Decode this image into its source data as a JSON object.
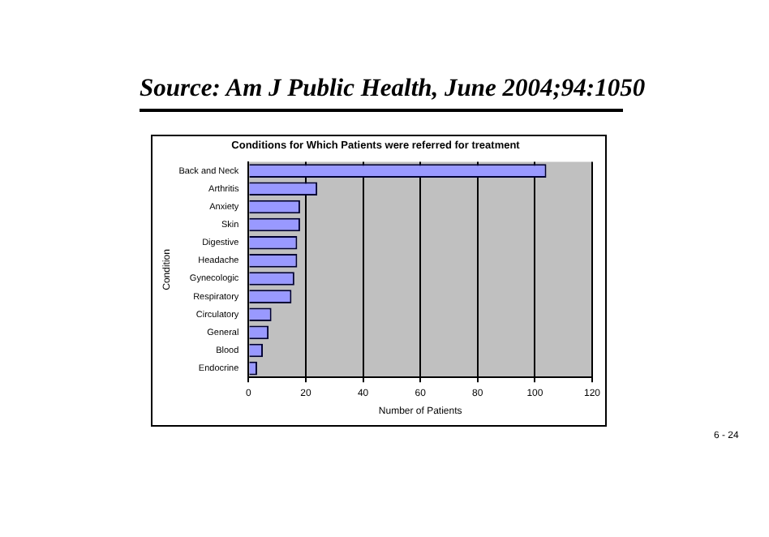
{
  "chart_data": {
    "type": "bar",
    "orientation": "horizontal",
    "title": "Conditions for Which Patients were referred for treatment",
    "xlabel": "Number of Patients",
    "ylabel": "Condition",
    "categories": [
      "Back and Neck",
      "Arthritis",
      "Anxiety",
      "Skin",
      "Digestive",
      "Headache",
      "Gynecologic",
      "Respiratory",
      "Circulatory",
      "General",
      "Blood",
      "Endocrine"
    ],
    "values": [
      104,
      24,
      18,
      18,
      17,
      17,
      16,
      15,
      8,
      7,
      5,
      3
    ],
    "color": "#9999ff",
    "xlim": [
      0,
      120
    ],
    "xticks": [
      0,
      20,
      40,
      60,
      80,
      100,
      120
    ],
    "grid": "x",
    "annotations": [
      "Source: Am J Public Health, June 2004;94:1050",
      "6 - 24"
    ]
  }
}
